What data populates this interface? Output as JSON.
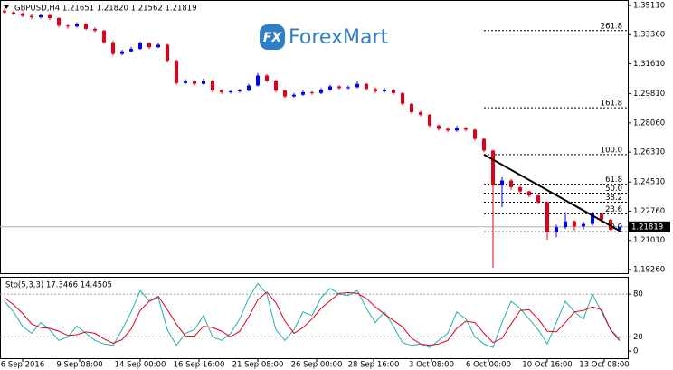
{
  "logo": {
    "icon": "FX",
    "text": "ForexMart"
  },
  "chart_data": [
    {
      "type": "candlestick",
      "title": "GBPUSD,H4  1.21651 1.21820 1.21562 1.21819",
      "open": [
        1.348,
        1.347,
        1.3462,
        1.3448,
        1.344,
        1.3452,
        1.3435,
        1.339,
        1.3385,
        1.34,
        1.337,
        1.336,
        1.329,
        1.322,
        1.3235,
        1.325,
        1.3285,
        1.326,
        1.3275,
        1.318,
        1.3045,
        1.3055,
        1.304,
        1.306,
        1.3,
        1.299,
        1.2995,
        1.3,
        1.303,
        1.309,
        1.306,
        1.3,
        1.2965,
        1.2975,
        1.299,
        1.2985,
        1.3005,
        1.3025,
        1.3015,
        1.302,
        1.304,
        1.301,
        1.2995,
        1.3005,
        1.2985,
        1.292,
        1.287,
        1.2855,
        1.279,
        1.277,
        1.276,
        1.2775,
        1.2765,
        1.271,
        1.264,
        1.243,
        1.246,
        1.242,
        1.2395,
        1.237,
        1.233,
        1.215,
        1.218,
        1.2215,
        1.2185,
        1.22,
        1.226,
        1.2225,
        1.21651
      ],
      "high": [
        1.3492,
        1.3478,
        1.347,
        1.3458,
        1.3462,
        1.346,
        1.344,
        1.3398,
        1.341,
        1.3405,
        1.338,
        1.3365,
        1.3298,
        1.3245,
        1.3262,
        1.3295,
        1.329,
        1.3288,
        1.328,
        1.3185,
        1.3068,
        1.3062,
        1.3072,
        1.3065,
        1.3008,
        1.3005,
        1.301,
        1.304,
        1.3105,
        1.3098,
        1.3065,
        1.3005,
        1.2985,
        1.3,
        1.2998,
        1.3015,
        1.3035,
        1.3032,
        1.303,
        1.3055,
        1.3045,
        1.3018,
        1.3015,
        1.301,
        1.299,
        1.2925,
        1.2878,
        1.286,
        1.2798,
        1.278,
        1.2788,
        1.2782,
        1.277,
        1.2715,
        1.2645,
        1.248,
        1.247,
        1.2428,
        1.24,
        1.2378,
        1.2335,
        1.2195,
        1.227,
        1.2222,
        1.2215,
        1.2272,
        1.2265,
        1.223,
        1.2182
      ],
      "low": [
        1.346,
        1.345,
        1.344,
        1.3428,
        1.3432,
        1.3425,
        1.338,
        1.3372,
        1.3378,
        1.3362,
        1.335,
        1.328,
        1.321,
        1.3212,
        1.3228,
        1.3245,
        1.325,
        1.3255,
        1.317,
        1.3035,
        1.3038,
        1.303,
        1.3035,
        1.299,
        1.298,
        1.2982,
        1.2988,
        1.2995,
        1.3025,
        1.305,
        1.299,
        1.2955,
        1.2958,
        1.2968,
        1.2975,
        1.2978,
        1.2998,
        1.3005,
        1.3008,
        1.3015,
        1.3002,
        1.2985,
        1.2988,
        1.2975,
        1.291,
        1.286,
        1.2845,
        1.278,
        1.276,
        1.275,
        1.2752,
        1.2755,
        1.27,
        1.263,
        1.1937,
        1.23,
        1.2405,
        1.2385,
        1.236,
        1.232,
        1.2105,
        1.212,
        1.217,
        1.216,
        1.2165,
        1.219,
        1.221,
        1.2158,
        1.21562
      ],
      "close": [
        1.347,
        1.3462,
        1.3448,
        1.344,
        1.3452,
        1.3435,
        1.339,
        1.3385,
        1.34,
        1.337,
        1.336,
        1.329,
        1.322,
        1.3235,
        1.325,
        1.3285,
        1.326,
        1.3275,
        1.318,
        1.3045,
        1.3055,
        1.304,
        1.306,
        1.3,
        1.299,
        1.2995,
        1.3,
        1.303,
        1.309,
        1.306,
        1.3,
        1.2965,
        1.2975,
        1.299,
        1.2985,
        1.3005,
        1.3025,
        1.3015,
        1.302,
        1.304,
        1.301,
        1.2995,
        1.3005,
        1.2985,
        1.292,
        1.287,
        1.2855,
        1.279,
        1.277,
        1.276,
        1.2775,
        1.2765,
        1.271,
        1.264,
        1.243,
        1.246,
        1.242,
        1.2395,
        1.237,
        1.233,
        1.215,
        1.218,
        1.2215,
        1.2185,
        1.22,
        1.226,
        1.2225,
        1.2165,
        1.21819
      ],
      "up_color": "#0000ff",
      "down_color": "#e0001a",
      "xlim": [
        -0.5,
        68.9
      ],
      "xticks": [
        {
          "value": 2,
          "label": "6 Sep 2016"
        },
        {
          "value": 8.3,
          "label": "9 Sep 08:00"
        },
        {
          "value": 15,
          "label": "14 Sep 00:00"
        },
        {
          "value": 21.5,
          "label": "16 Sep 16:00"
        },
        {
          "value": 28,
          "label": "21 Sep 08:00"
        },
        {
          "value": 34.5,
          "label": "26 Sep 00:00"
        },
        {
          "value": 40.8,
          "label": "28 Sep 16:00"
        },
        {
          "value": 47.2,
          "label": "3 Oct 08:00"
        },
        {
          "value": 53.5,
          "label": "6 Oct 00:00"
        },
        {
          "value": 60,
          "label": "10 Oct 16:00"
        },
        {
          "value": 66.3,
          "label": "13 Oct 08:00"
        }
      ],
      "ylim": [
        1.1904,
        1.3538
      ],
      "yticks": [
        {
          "value": 1.3511,
          "label": "1.35110"
        },
        {
          "value": 1.3336,
          "label": "1.33360"
        },
        {
          "value": 1.3161,
          "label": "1.31610"
        },
        {
          "value": 1.2981,
          "label": "1.29810"
        },
        {
          "value": 1.2806,
          "label": "1.28060"
        },
        {
          "value": 1.2631,
          "label": "1.26310"
        },
        {
          "value": 1.2451,
          "label": "1.24510"
        },
        {
          "value": 1.2276,
          "label": "1.22760"
        },
        {
          "value": 1.2101,
          "label": "1.21010"
        },
        {
          "value": 1.1926,
          "label": "1.19260"
        }
      ],
      "last_price": 1.21819,
      "fibonacci": {
        "start": 53,
        "levels": [
          {
            "label": "261.8",
            "value": 1.33601
          },
          {
            "label": "161.8",
            "value": 1.28965
          },
          {
            "label": "100.0",
            "value": 1.26161
          },
          {
            "label": "61.8",
            "value": 1.24382
          },
          {
            "label": "50.0",
            "value": 1.23843
          },
          {
            "label": "38.2",
            "value": 1.23304
          },
          {
            "label": "23.6",
            "value": 1.22603
          },
          {
            "label": "0.0",
            "value": 1.21525
          }
        ]
      },
      "trendline": {
        "x": [
          53,
          68.2
        ],
        "y": [
          1.2616,
          1.2152
        ]
      }
    },
    {
      "type": "line",
      "title": "Sto(5,3,3) 17.3466 14.4505",
      "series": [
        {
          "color": "#20b2aa",
          "values": [
            70,
            55,
            35,
            25,
            40,
            30,
            15,
            20,
            35,
            25,
            15,
            10,
            8,
            30,
            55,
            85,
            70,
            75,
            30,
            8,
            25,
            30,
            50,
            20,
            15,
            25,
            45,
            75,
            95,
            80,
            30,
            15,
            30,
            55,
            50,
            75,
            88,
            80,
            78,
            85,
            60,
            40,
            55,
            35,
            12,
            8,
            10,
            5,
            15,
            25,
            55,
            45,
            20,
            10,
            5,
            40,
            70,
            60,
            45,
            30,
            10,
            40,
            70,
            55,
            45,
            80,
            55,
            30,
            17.3466
          ]
        },
        {
          "color": "#e0001a",
          "values": [
            75,
            65,
            53,
            38,
            33,
            32,
            28,
            22,
            23,
            27,
            25,
            17,
            11,
            16,
            31,
            57,
            70,
            77,
            58,
            38,
            21,
            21,
            35,
            33,
            28,
            20,
            28,
            48,
            72,
            83,
            68,
            42,
            25,
            33,
            45,
            60,
            71,
            81,
            82,
            81,
            74,
            62,
            52,
            43,
            34,
            18,
            10,
            8,
            10,
            15,
            32,
            42,
            40,
            25,
            12,
            18,
            38,
            57,
            58,
            45,
            28,
            27,
            40,
            55,
            57,
            62,
            58,
            30,
            14.4505
          ]
        }
      ],
      "xlim": [
        -0.5,
        68.9
      ],
      "ylim": [
        -10,
        103
      ],
      "yticks": [
        80,
        20,
        0
      ],
      "levels": [
        80,
        20
      ]
    }
  ]
}
